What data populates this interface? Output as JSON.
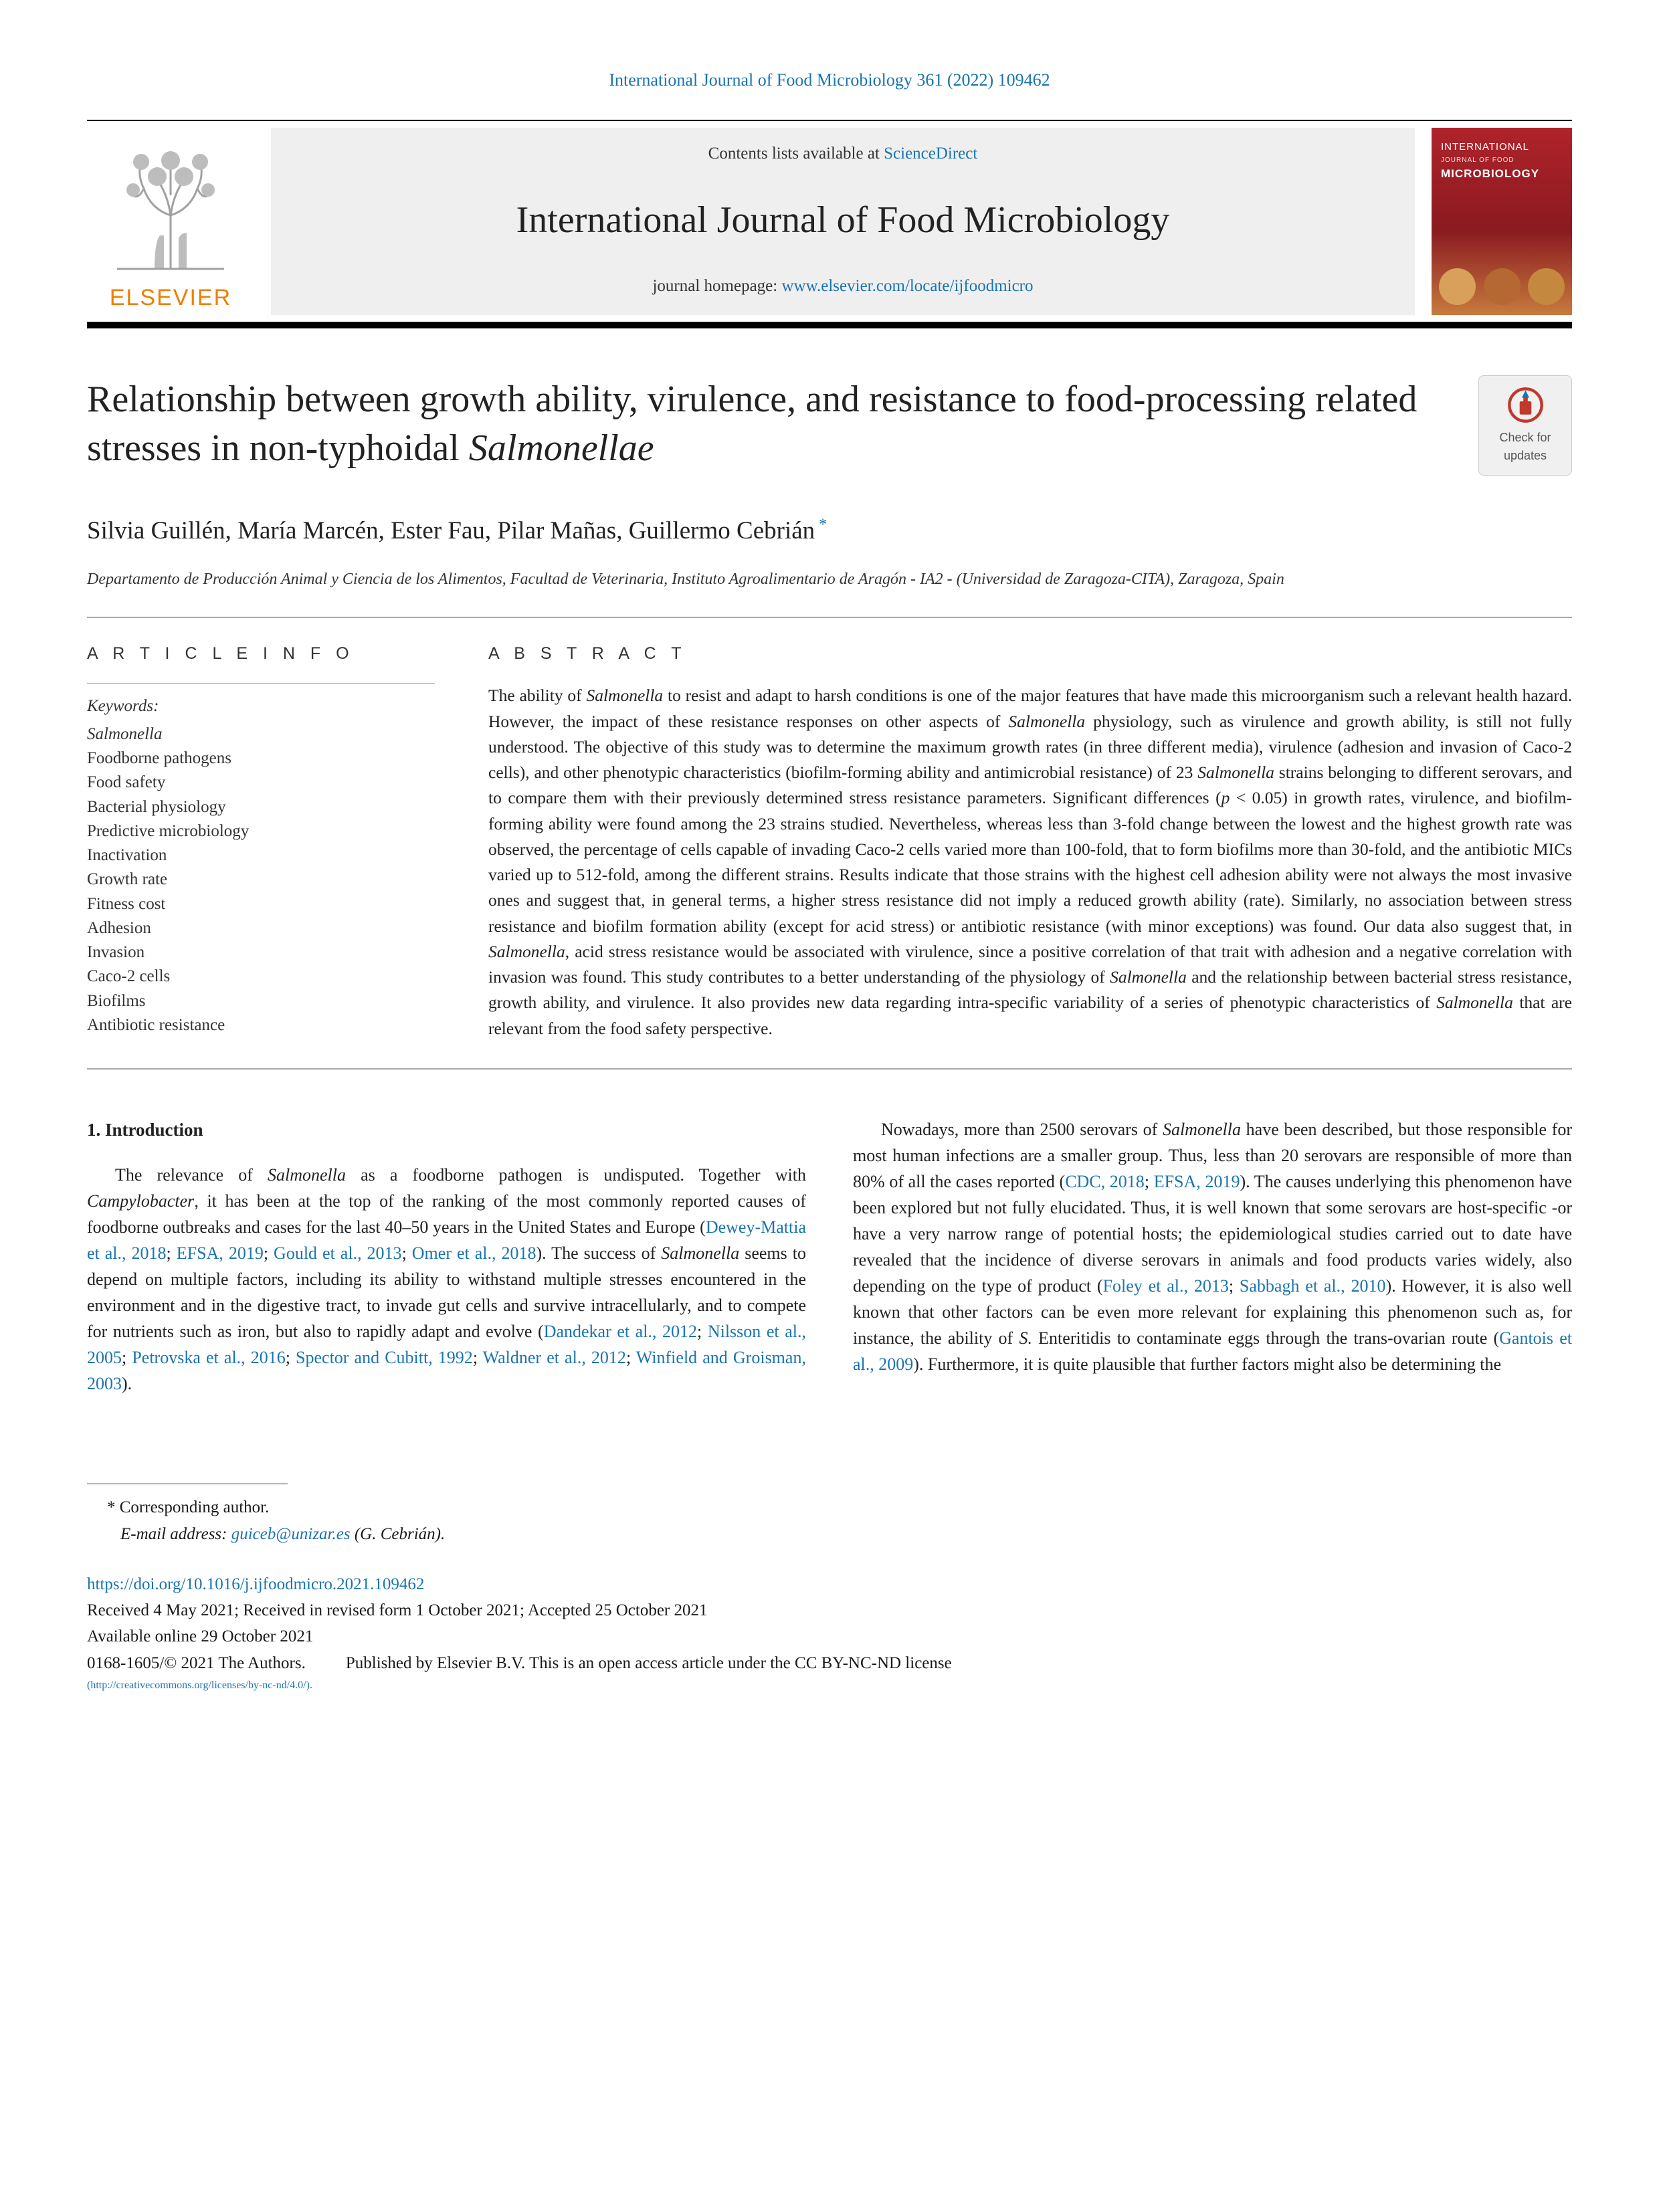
{
  "citation": "International Journal of Food Microbiology 361 (2022) 109462",
  "contents_prefix": "Contents lists available at ",
  "contents_link": "ScienceDirect",
  "journal_name": "International Journal of Food Microbiology",
  "homepage_prefix": "journal homepage: ",
  "homepage_link": "www.elsevier.com/locate/ijfoodmicro",
  "elsevier_word": "ELSEVIER",
  "cover": {
    "l1": "INTERNATIONAL",
    "l2": "JOURNAL OF FOOD",
    "l3": "MICROBIOLOGY"
  },
  "updates_label": "Check for updates",
  "title_html": "Relationship between growth ability, virulence, and resistance to food-processing related stresses in non-typhoidal <em>Salmonellae</em>",
  "authors_html": "Silvia Guillén, María Marcén, Ester Fau, Pilar Mañas, Guillermo Cebrián<sup> *</sup>",
  "affiliation": "Departamento de Producción Animal y Ciencia de los Alimentos, Facultad de Veterinaria, Instituto Agroalimentario de Aragón - IA2 - (Universidad de Zaragoza-CITA), Zaragoza, Spain",
  "info_heading": "A R T I C L E  I N F O",
  "abs_heading": "A B S T R A C T",
  "keywords_label": "Keywords:",
  "keywords": [
    "Salmonella",
    "Foodborne pathogens",
    "Food safety",
    "Bacterial physiology",
    "Predictive microbiology",
    "Inactivation",
    "Growth rate",
    "Fitness cost",
    "Adhesion",
    "Invasion",
    "Caco-2 cells",
    "Biofilms",
    "Antibiotic resistance"
  ],
  "abstract_html": "The ability of <em>Salmonella</em> to resist and adapt to harsh conditions is one of the major features that have made this microorganism such a relevant health hazard. However, the impact of these resistance responses on other aspects of <em>Salmonella</em> physiology, such as virulence and growth ability, is still not fully understood. The objective of this study was to determine the maximum growth rates (in three different media), virulence (adhesion and invasion of Caco-2 cells), and other phenotypic characteristics (biofilm-forming ability and antimicrobial resistance) of 23 <em>Salmonella</em> strains belonging to different serovars, and to compare them with their previously determined stress resistance parameters. Significant differences (<em>p</em> &lt; 0.05) in growth rates, virulence, and biofilm-forming ability were found among the 23 strains studied. Nevertheless, whereas less than 3-fold change between the lowest and the highest growth rate was observed, the percentage of cells capable of invading Caco-2 cells varied more than 100-fold, that to form biofilms more than 30-fold, and the antibiotic MICs varied up to 512-fold, among the different strains. Results indicate that those strains with the highest cell adhesion ability were not always the most invasive ones and suggest that, in general terms, a higher stress resistance did not imply a reduced growth ability (rate). Similarly, no association between stress resistance and biofilm formation ability (except for acid stress) or antibiotic resistance (with minor exceptions) was found. Our data also suggest that, in <em>Salmonella</em>, acid stress resistance would be associated with virulence, since a positive correlation of that trait with adhesion and a negative correlation with invasion was found. This study contributes to a better understanding of the physiology of <em>Salmonella</em> and the relationship between bacterial stress resistance, growth ability, and virulence. It also provides new data regarding intra-specific variability of a series of phenotypic characteristics of <em>Salmonella</em> that are relevant from the food safety perspective.",
  "sec1_head": "1. Introduction",
  "col1_html": "The relevance of <em>Salmonella</em> as a foodborne pathogen is undisputed. Together with <em>Campylobacter</em>, it has been at the top of the ranking of the most commonly reported causes of foodborne outbreaks and cases for the last 40–50 years in the United States and Europe (<a class='ref-link'>Dewey-Mattia et al., 2018</a>; <a class='ref-link'>EFSA, 2019</a>; <a class='ref-link'>Gould et al., 2013</a>; <a class='ref-link'>Omer et al., 2018</a>). The success of <em>Salmonella</em> seems to depend on multiple factors, including its ability to withstand multiple stresses encountered in the environment and in the digestive tract, to invade gut cells and survive intracellularly, and to compete for nutrients such as iron, but also to rapidly adapt and evolve (<a class='ref-link'>Dandekar et al., 2012</a>; <a class='ref-link'>Nilsson et al., 2005</a>; <a class='ref-link'>Petrovska et al., 2016</a>; <a class='ref-link'>Spector and Cubitt, 1992</a>; <a class='ref-link'>Waldner et al., 2012</a>; <a class='ref-link'>Winfield and Groisman, 2003</a>).",
  "col2_html": "Nowadays, more than 2500 serovars of <em>Salmonella</em> have been described, but those responsible for most human infections are a smaller group. Thus, less than 20 serovars are responsible of more than 80% of all the cases reported (<a class='ref-link'>CDC, 2018</a>; <a class='ref-link'>EFSA, 2019</a>). The causes underlying this phenomenon have been explored but not fully elucidated. Thus, it is well known that some serovars are host-specific -or have a very narrow range of potential hosts; the epidemiological studies carried out to date have revealed that the incidence of diverse serovars in animals and food products varies widely, also depending on the type of product (<a class='ref-link'>Foley et al., 2013</a>; <a class='ref-link'>Sabbagh et al., 2010</a>). However, it is also well known that other factors can be even more relevant for explaining this phenomenon such as, for instance, the ability of <em>S.</em> Enteritidis to contaminate eggs through the trans-ovarian route (<a class='ref-link'>Gantois et al., 2009</a>). Furthermore, it is quite plausible that further factors might also be determining the",
  "corr_label": "* Corresponding author.",
  "corr_email_label": "E-mail address: ",
  "corr_email": "guiceb@unizar.es",
  "corr_name": " (G. Cebrián).",
  "doi": "https://doi.org/10.1016/j.ijfoodmicro.2021.109462",
  "received": "Received 4 May 2021; Received in revised form 1 October 2021; Accepted 25 October 2021",
  "available": "Available online 29 October 2021",
  "copy_left": "0168-1605/© 2021 The Authors.",
  "copy_right": "Published by Elsevier B.V. This is an open access article under the CC BY-NC-ND license",
  "license_url": "(http://creativecommons.org/licenses/by-nc-nd/4.0/)."
}
